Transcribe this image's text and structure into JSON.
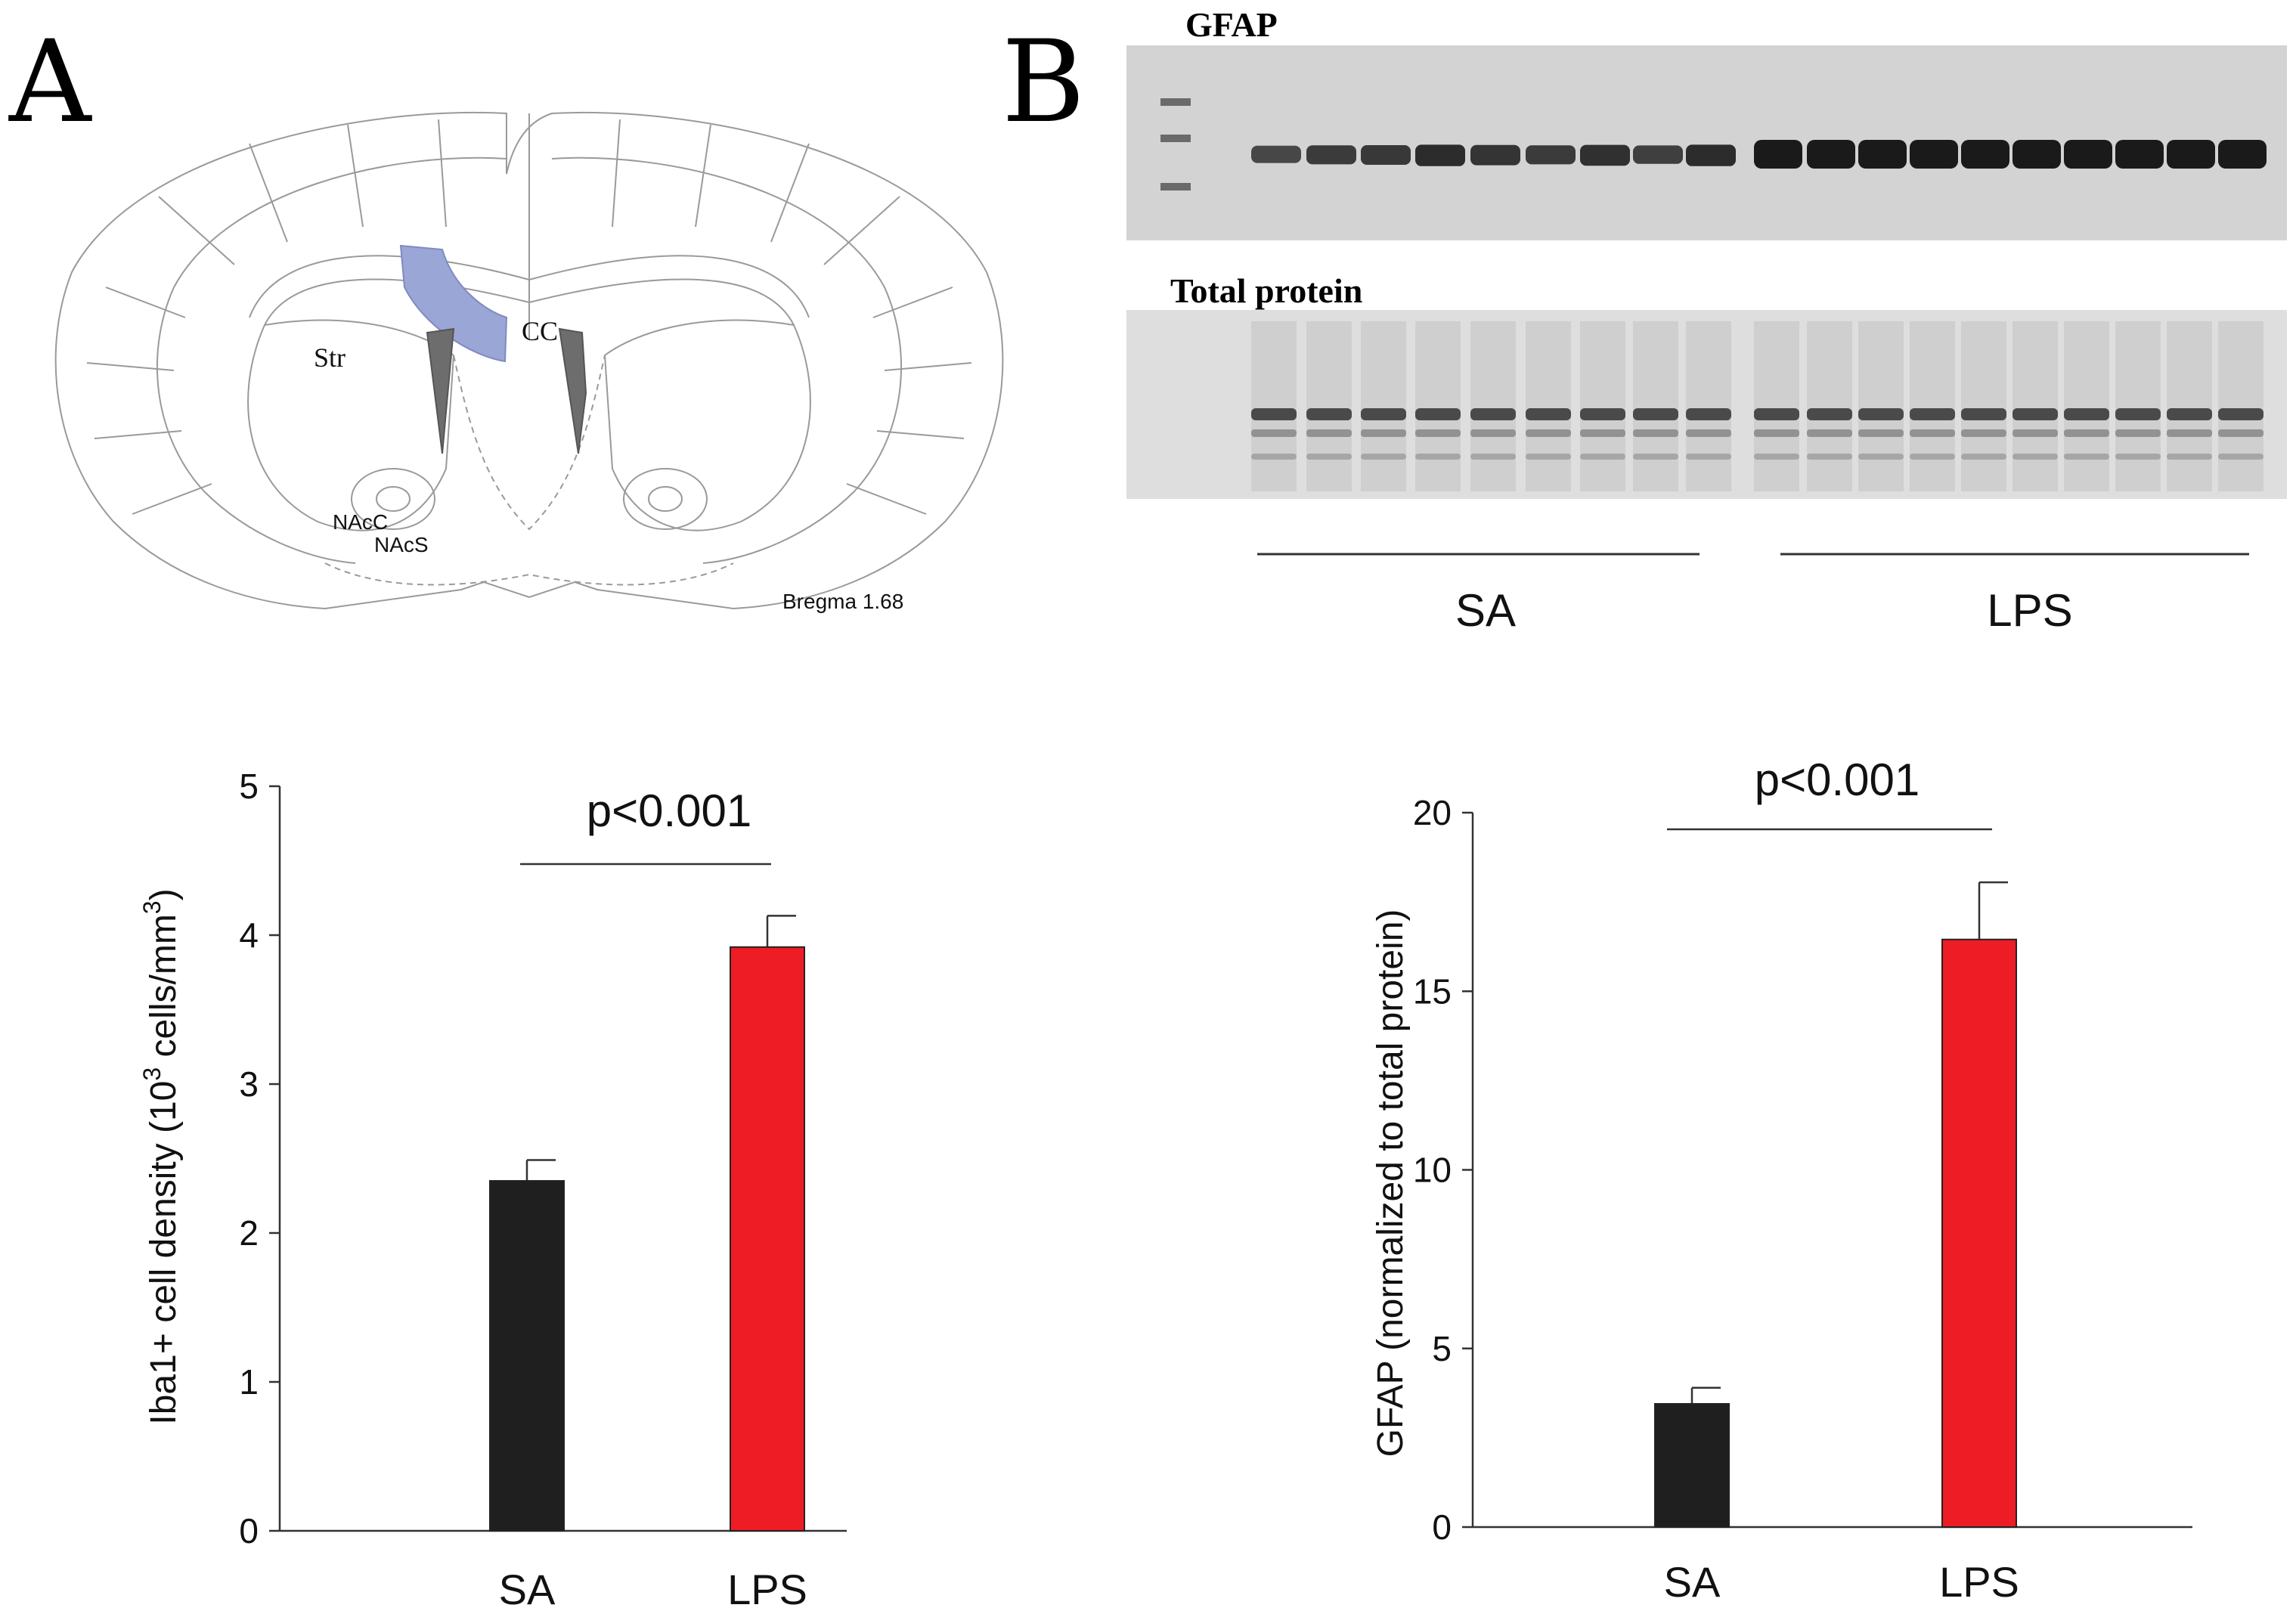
{
  "panels": {
    "a_letter": "A",
    "b_letter": "B"
  },
  "brain_atlas": {
    "labels": {
      "str": "Str",
      "cc": "CC",
      "nacc": "NAcC",
      "nacs": "NAcS",
      "bregma": "Bregma 1.68"
    },
    "highlight_color": "#9aa6d6"
  },
  "western_blot": {
    "gfap_title": "GFAP",
    "total_protein_title": "Total protein",
    "group_sa": "SA",
    "group_lps": "LPS"
  },
  "colors": {
    "sa": "#1f1f1f",
    "lps": "#ee1c25"
  },
  "chart_data": [
    {
      "type": "bar",
      "categories": [
        "SA",
        "LPS"
      ],
      "values": [
        2.35,
        3.92
      ],
      "errors": [
        0.14,
        0.21
      ],
      "ylabel_main": "Iba1+ cell density (10",
      "ylabel_sup": "3",
      "ylabel_tail": " cells/mm",
      "ylabel_sup2": "3",
      "ylabel_close": ")",
      "ylim": [
        0,
        5
      ],
      "yticks": [
        "0",
        "1",
        "2",
        "3",
        "4",
        "5"
      ],
      "annotation": "p<0.001"
    },
    {
      "type": "bar",
      "categories": [
        "SA",
        "LPS"
      ],
      "values": [
        3.45,
        16.45
      ],
      "errors": [
        0.45,
        1.6
      ],
      "ylabel": "GFAP (normalized to total protein)",
      "ylim": [
        0,
        20
      ],
      "yticks": [
        "0",
        "5",
        "10",
        "15",
        "20"
      ],
      "annotation": "p<0.001"
    }
  ]
}
